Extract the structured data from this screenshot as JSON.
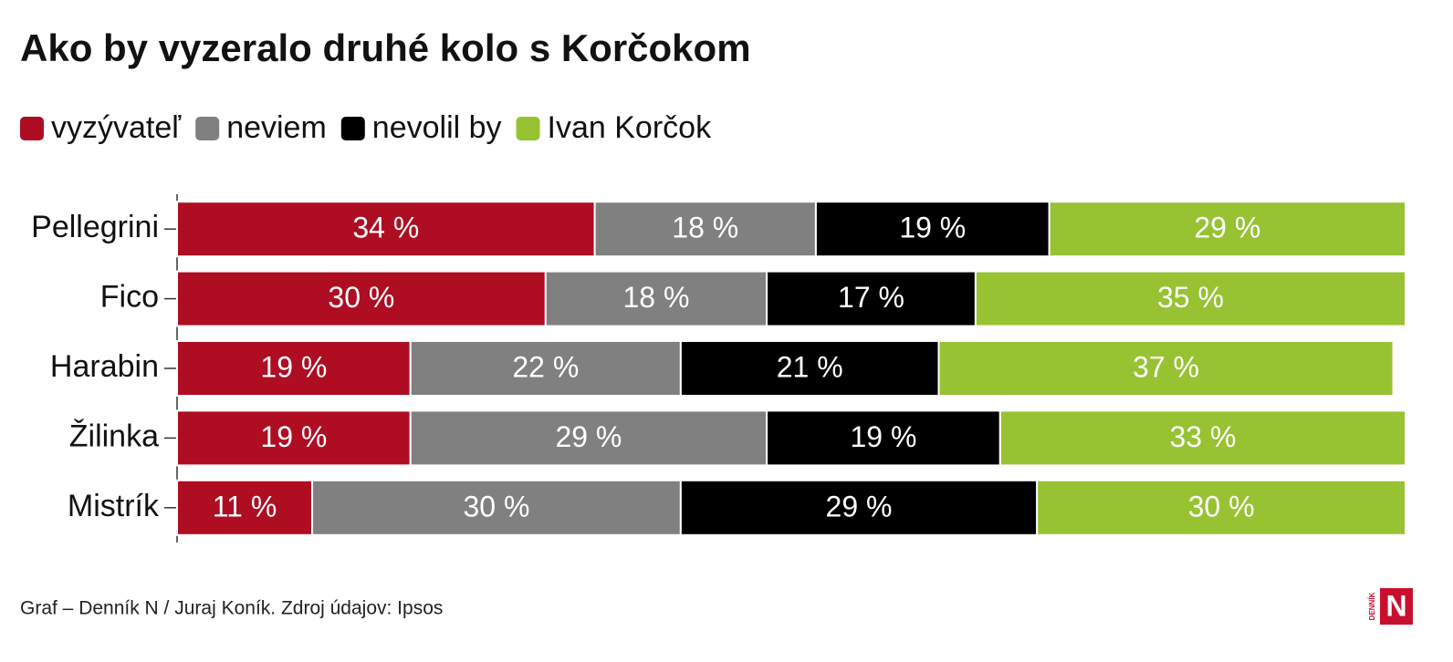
{
  "chart_data": {
    "type": "stacked-barh",
    "title": "Ako by vyzeralo druhé kolo s Korčokom",
    "categories": [
      "Pellegrini",
      "Fico",
      "Harabin",
      "Žilinka",
      "Mistrík"
    ],
    "series": [
      {
        "name": "vyzývateľ",
        "color": "#ae0d22",
        "values": [
          34,
          30,
          19,
          19,
          11
        ],
        "value_labels": [
          "34 %",
          "30 %",
          "19 %",
          "19 %",
          "11 %"
        ]
      },
      {
        "name": "neviem",
        "color": "#808080",
        "values": [
          18,
          18,
          22,
          29,
          30
        ],
        "value_labels": [
          "18 %",
          "18 %",
          "22 %",
          "29 %",
          "30 %"
        ]
      },
      {
        "name": "nevolil by",
        "color": "#000000",
        "values": [
          19,
          17,
          21,
          19,
          29
        ],
        "value_labels": [
          "19 %",
          "17 %",
          "21 %",
          "19 %",
          "29 %"
        ]
      },
      {
        "name": "Ivan Korčok",
        "color": "#97c232",
        "values": [
          29,
          35,
          37,
          33,
          30
        ],
        "value_labels": [
          "29 %",
          "35 %",
          "37 %",
          "33 %",
          "30 %"
        ]
      }
    ],
    "xlim": [
      0,
      100
    ],
    "legend": "top-left"
  },
  "footer": {
    "source": "Graf – Denník N / Juraj Koník. Zdroj údajov: Ipsos",
    "logo_small": "DENNÍK",
    "logo_letter": "N"
  }
}
